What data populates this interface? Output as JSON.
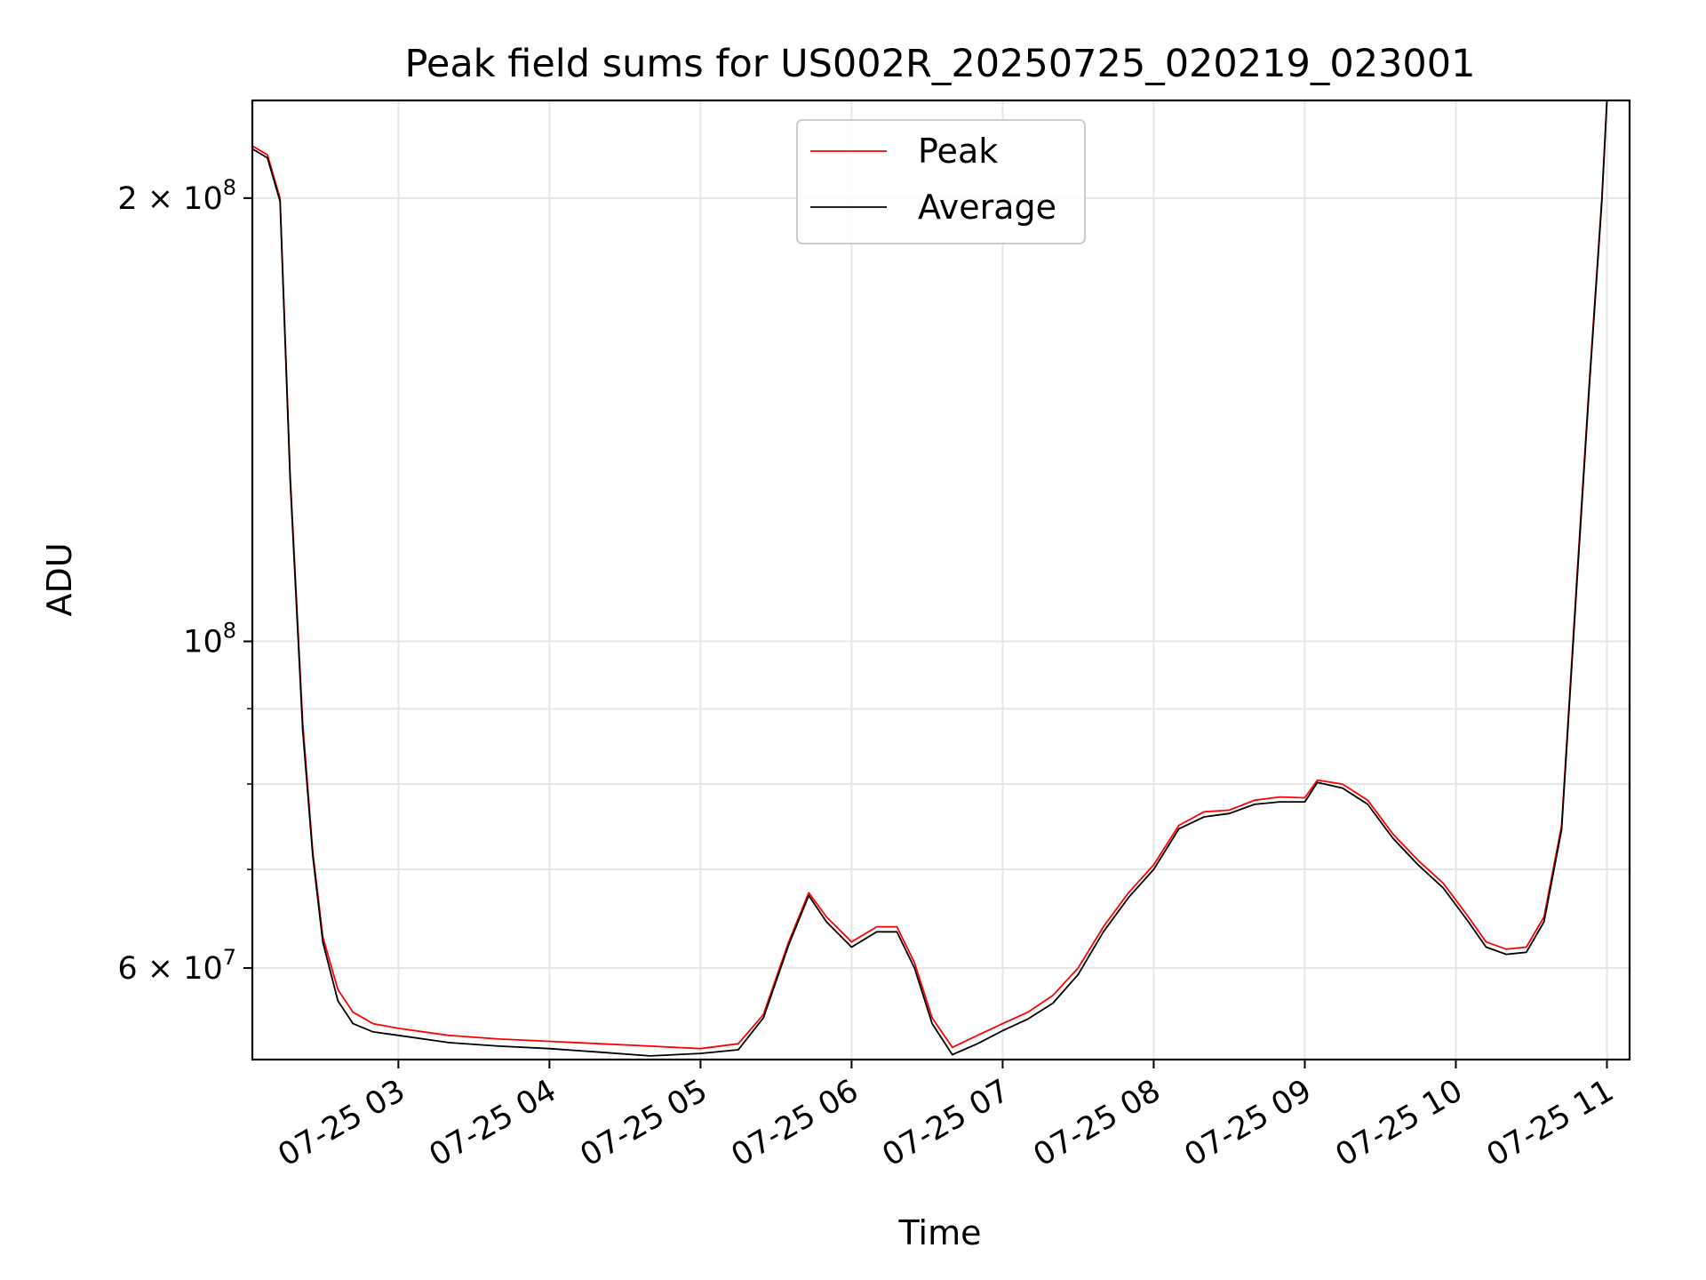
{
  "chart_data": {
    "type": "line",
    "title": "Peak field sums for US002R_20250725_020219_023001",
    "xlabel": "Time",
    "ylabel": "ADU",
    "x_unit": "date-time (2025-07-25)",
    "y_scale": "log",
    "xlim": [
      "07-25 02:02",
      "07-25 11:09"
    ],
    "ylim": [
      52000000,
      233000000
    ],
    "x_ticks": [
      {
        "value": "07-25 03:00",
        "label": "07-25 03"
      },
      {
        "value": "07-25 04:00",
        "label": "07-25 04"
      },
      {
        "value": "07-25 05:00",
        "label": "07-25 05"
      },
      {
        "value": "07-25 06:00",
        "label": "07-25 06"
      },
      {
        "value": "07-25 07:00",
        "label": "07-25 07"
      },
      {
        "value": "07-25 08:00",
        "label": "07-25 08"
      },
      {
        "value": "07-25 09:00",
        "label": "07-25 09"
      },
      {
        "value": "07-25 10:00",
        "label": "07-25 10"
      },
      {
        "value": "07-25 11:00",
        "label": "07-25 11"
      }
    ],
    "y_ticks_major": [
      {
        "value": 60000000,
        "base": "6 × 10",
        "exp": "7"
      },
      {
        "value": 100000000,
        "base": "10",
        "exp": "8"
      },
      {
        "value": 200000000,
        "base": "2 × 10",
        "exp": "8"
      }
    ],
    "y_ticks_minor": [
      70000000,
      80000000,
      90000000
    ],
    "grid": true,
    "legend_position": "top-center",
    "series": [
      {
        "name": "Peak",
        "color": "#ff0000",
        "x": [
          "07-25 02:02",
          "07-25 02:08",
          "07-25 02:13",
          "07-25 02:17",
          "07-25 02:22",
          "07-25 02:26",
          "07-25 02:30",
          "07-25 02:36",
          "07-25 02:42",
          "07-25 02:50",
          "07-25 03:00",
          "07-25 03:20",
          "07-25 03:40",
          "07-25 04:00",
          "07-25 04:20",
          "07-25 04:40",
          "07-25 05:00",
          "07-25 05:15",
          "07-25 05:25",
          "07-25 05:35",
          "07-25 05:43",
          "07-25 05:50",
          "07-25 06:00",
          "07-25 06:10",
          "07-25 06:18",
          "07-25 06:25",
          "07-25 06:32",
          "07-25 06:40",
          "07-25 06:50",
          "07-25 07:00",
          "07-25 07:10",
          "07-25 07:20",
          "07-25 07:30",
          "07-25 07:40",
          "07-25 07:50",
          "07-25 08:00",
          "07-25 08:10",
          "07-25 08:20",
          "07-25 08:30",
          "07-25 08:40",
          "07-25 08:50",
          "07-25 09:00",
          "07-25 09:05",
          "07-25 09:15",
          "07-25 09:25",
          "07-25 09:35",
          "07-25 09:45",
          "07-25 09:55",
          "07-25 10:05",
          "07-25 10:12",
          "07-25 10:20",
          "07-25 10:28",
          "07-25 10:35",
          "07-25 10:42",
          "07-25 10:48",
          "07-25 10:53",
          "07-25 10:58",
          "07-25 11:00"
        ],
        "values": [
          217000000,
          214000000,
          200000000,
          130000000,
          88000000,
          72000000,
          63000000,
          58000000,
          56000000,
          55000000,
          54600000,
          54000000,
          53700000,
          53500000,
          53300000,
          53100000,
          52900000,
          53300000,
          55800000,
          62500000,
          67500000,
          65000000,
          62500000,
          64000000,
          64000000,
          60500000,
          55500000,
          53000000,
          54000000,
          55000000,
          56000000,
          57500000,
          60000000,
          64000000,
          67500000,
          70500000,
          75000000,
          76600000,
          76800000,
          78000000,
          78400000,
          78300000,
          80500000,
          80000000,
          78000000,
          74000000,
          71000000,
          68500000,
          65000000,
          62500000,
          61800000,
          62000000,
          65000000,
          75000000,
          110000000,
          150000000,
          200000000,
          233000000
        ]
      },
      {
        "name": "Average",
        "color": "#000000",
        "x": [
          "07-25 02:02",
          "07-25 02:08",
          "07-25 02:13",
          "07-25 02:17",
          "07-25 02:22",
          "07-25 02:26",
          "07-25 02:30",
          "07-25 02:36",
          "07-25 02:42",
          "07-25 02:50",
          "07-25 03:00",
          "07-25 03:20",
          "07-25 03:40",
          "07-25 04:00",
          "07-25 04:20",
          "07-25 04:40",
          "07-25 05:00",
          "07-25 05:15",
          "07-25 05:25",
          "07-25 05:35",
          "07-25 05:43",
          "07-25 05:50",
          "07-25 06:00",
          "07-25 06:10",
          "07-25 06:18",
          "07-25 06:25",
          "07-25 06:32",
          "07-25 06:40",
          "07-25 06:50",
          "07-25 07:00",
          "07-25 07:10",
          "07-25 07:20",
          "07-25 07:30",
          "07-25 07:40",
          "07-25 07:50",
          "07-25 08:00",
          "07-25 08:10",
          "07-25 08:20",
          "07-25 08:30",
          "07-25 08:40",
          "07-25 08:50",
          "07-25 09:00",
          "07-25 09:05",
          "07-25 09:15",
          "07-25 09:25",
          "07-25 09:35",
          "07-25 09:45",
          "07-25 09:55",
          "07-25 10:05",
          "07-25 10:12",
          "07-25 10:20",
          "07-25 10:28",
          "07-25 10:35",
          "07-25 10:42",
          "07-25 10:48",
          "07-25 10:53",
          "07-25 10:58",
          "07-25 11:00"
        ],
        "values": [
          216000000,
          213000000,
          199000000,
          129000000,
          87000000,
          71500000,
          62500000,
          57000000,
          55000000,
          54300000,
          54000000,
          53400000,
          53100000,
          52900000,
          52600000,
          52300000,
          52500000,
          52800000,
          55500000,
          62200000,
          67200000,
          64500000,
          62000000,
          63500000,
          63500000,
          60000000,
          55000000,
          52400000,
          53300000,
          54400000,
          55400000,
          56800000,
          59400000,
          63500000,
          67000000,
          70000000,
          74600000,
          76000000,
          76400000,
          77500000,
          77800000,
          77800000,
          80200000,
          79500000,
          77500000,
          73500000,
          70500000,
          68000000,
          64500000,
          62000000,
          61300000,
          61500000,
          64500000,
          74500000,
          109000000,
          149000000,
          199000000,
          233000000
        ]
      }
    ]
  }
}
